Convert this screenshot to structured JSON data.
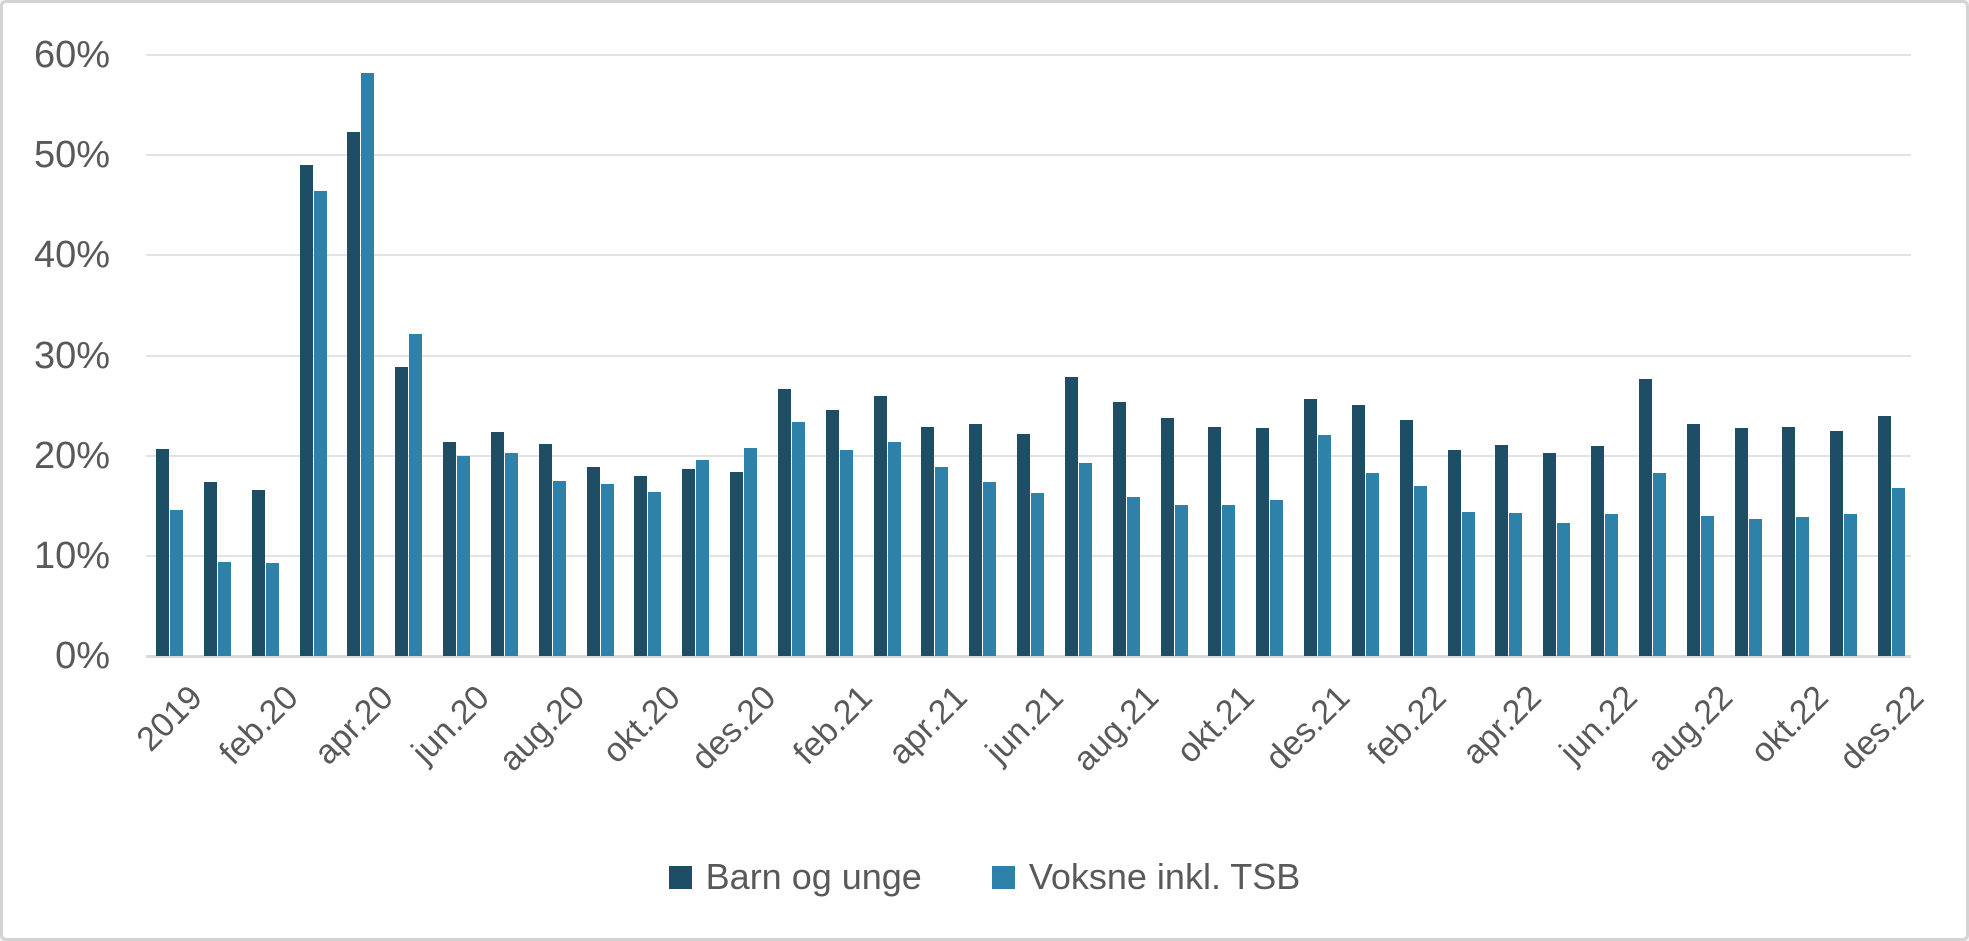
{
  "chart_data": {
    "type": "bar",
    "title": "",
    "categories": [
      "2019",
      "jan.20",
      "feb.20",
      "mar.20",
      "apr.20",
      "mai.20",
      "jun.20",
      "jul.20",
      "aug.20",
      "sep.20",
      "okt.20",
      "nov.20",
      "des.20",
      "jan.21",
      "feb.21",
      "mar.21",
      "apr.21",
      "mai.21",
      "jun.21",
      "jul.21",
      "aug.21",
      "sep.21",
      "okt.21",
      "nov.21",
      "des.21",
      "jan.22",
      "feb.22",
      "mar.22",
      "apr.22",
      "mai.22",
      "jun.22",
      "jul.22",
      "aug.22",
      "sep.22",
      "okt.22",
      "nov.22",
      "des.22"
    ],
    "x_tick_labels": [
      "2019",
      "feb.20",
      "apr.20",
      "jun.20",
      "aug.20",
      "okt.20",
      "des.20",
      "feb.21",
      "apr.21",
      "jun.21",
      "aug.21",
      "okt.21",
      "des.21",
      "feb.22",
      "apr.22",
      "jun.22",
      "aug.22",
      "okt.22",
      "des.22"
    ],
    "tick_every": 2,
    "series": [
      {
        "name": "Barn og unge",
        "color": "#1D4E66",
        "values": [
          20.7,
          17.4,
          16.6,
          49.0,
          52.3,
          28.9,
          21.4,
          22.4,
          21.2,
          18.9,
          18.0,
          18.7,
          18.4,
          26.7,
          24.6,
          26.0,
          22.9,
          23.2,
          22.2,
          27.9,
          25.4,
          23.8,
          22.9,
          22.8,
          25.7,
          25.1,
          23.6,
          20.6,
          21.1,
          20.3,
          21.0,
          27.7,
          23.2,
          22.8,
          22.9,
          22.5,
          24.0
        ]
      },
      {
        "name": "Voksne inkl. TSB",
        "color": "#2E81A8",
        "values": [
          14.6,
          9.4,
          9.3,
          46.4,
          58.2,
          32.1,
          20.0,
          20.3,
          17.5,
          17.2,
          16.4,
          19.6,
          20.8,
          23.4,
          20.6,
          21.4,
          18.9,
          17.4,
          16.3,
          19.3,
          15.9,
          15.1,
          15.1,
          15.6,
          22.1,
          18.3,
          17.0,
          14.4,
          14.3,
          13.3,
          14.2,
          18.3,
          14.0,
          13.7,
          13.9,
          14.2,
          16.8
        ]
      }
    ],
    "ylim": [
      0,
      60
    ],
    "y_tick_step": 10,
    "y_tick_labels": [
      "0%",
      "10%",
      "20%",
      "30%",
      "40%",
      "50%",
      "60%"
    ],
    "grid": true,
    "legend_position": "bottom"
  },
  "colors": {
    "axis_text": "#595959",
    "gridline": "#e3e3e3",
    "baseline": "#d9d9d9",
    "background": "#ffffff",
    "frame_border": "#d3d3d3"
  }
}
